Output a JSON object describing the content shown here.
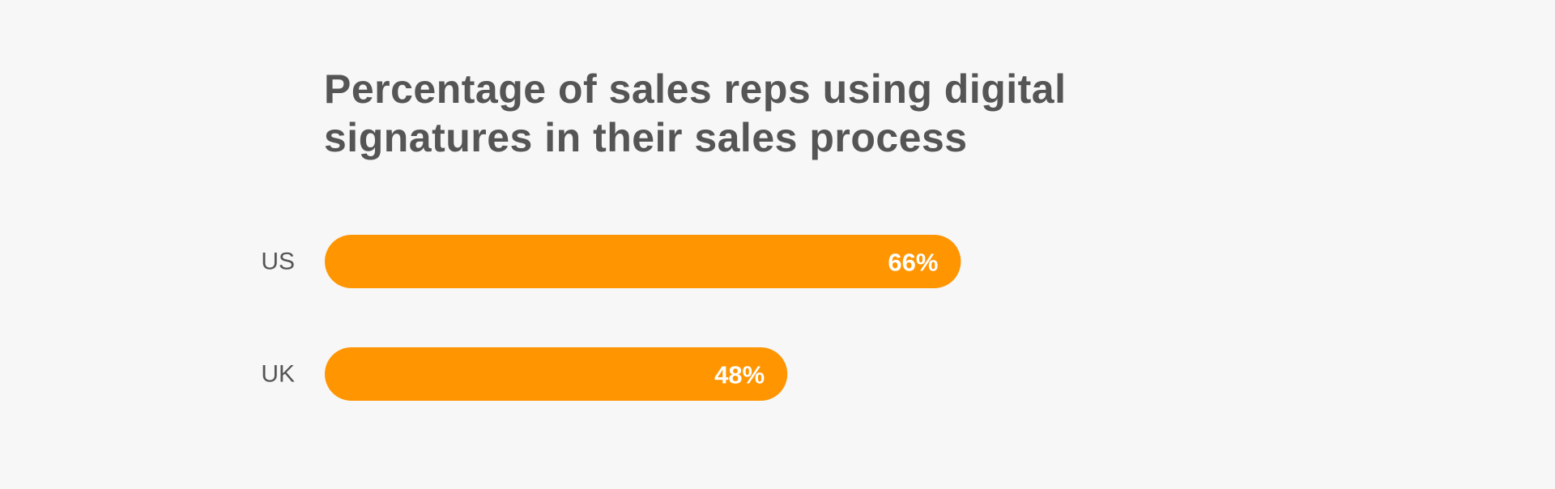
{
  "chart_data": {
    "type": "bar",
    "orientation": "horizontal",
    "title": "Percentage of sales reps using digital signatures in their sales process",
    "categories": [
      "US",
      "UK"
    ],
    "values": [
      66,
      48
    ],
    "value_labels": [
      "66%",
      "48%"
    ],
    "color": "#ff9500"
  }
}
